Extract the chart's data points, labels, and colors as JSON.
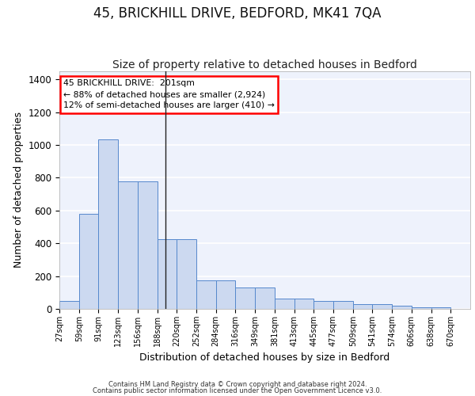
{
  "title1": "45, BRICKHILL DRIVE, BEDFORD, MK41 7QA",
  "title2": "Size of property relative to detached houses in Bedford",
  "xlabel": "Distribution of detached houses by size in Bedford",
  "ylabel": "Number of detached properties",
  "bin_labels": [
    "27sqm",
    "59sqm",
    "91sqm",
    "123sqm",
    "156sqm",
    "188sqm",
    "220sqm",
    "252sqm",
    "284sqm",
    "316sqm",
    "349sqm",
    "381sqm",
    "413sqm",
    "445sqm",
    "477sqm",
    "509sqm",
    "541sqm",
    "574sqm",
    "606sqm",
    "638sqm",
    "670sqm"
  ],
  "bar_heights": [
    50,
    580,
    1035,
    780,
    780,
    425,
    425,
    175,
    175,
    130,
    130,
    65,
    65,
    50,
    50,
    28,
    28,
    18,
    10,
    10,
    0
  ],
  "bar_color": "#ccd9f0",
  "bar_edge_color": "#5588cc",
  "ylim": [
    0,
    1450
  ],
  "yticks": [
    0,
    200,
    400,
    600,
    800,
    1000,
    1200,
    1400
  ],
  "annotation_line1": "45 BRICKHILL DRIVE:  201sqm",
  "annotation_line2": "← 88% of detached houses are smaller (2,924)",
  "annotation_line3": "12% of semi-detached houses are larger (410) →",
  "vline_x": 5.4,
  "footer1": "Contains HM Land Registry data © Crown copyright and database right 2024.",
  "footer2": "Contains public sector information licensed under the Open Government Licence v3.0.",
  "background_color": "#eef2fc",
  "grid_color": "#ffffff",
  "title1_fontsize": 12,
  "title2_fontsize": 10,
  "ylabel_fontsize": 9,
  "xlabel_fontsize": 9
}
